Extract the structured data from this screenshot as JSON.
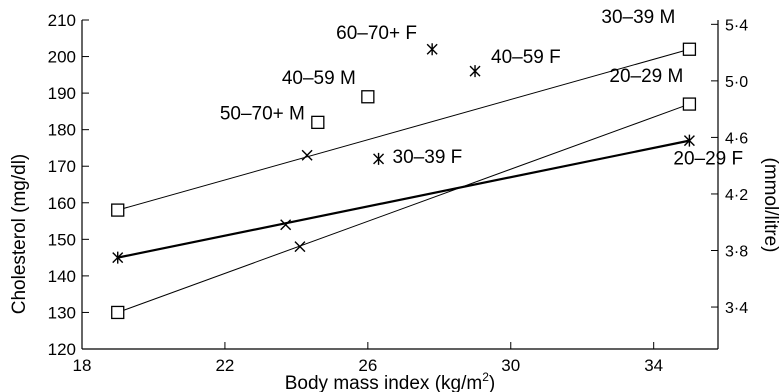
{
  "chart_data": {
    "type": "scatter",
    "xlabel": "Body mass index (kg/m",
    "xlabel_sup": "2",
    "xlabel_end": ")",
    "ylabel": "Cholesterol (mg/dl)",
    "y2label": "(mmol/litre)",
    "xlim": [
      18,
      35.8
    ],
    "ylim": [
      120,
      210
    ],
    "x_ticks": [
      18,
      22,
      26,
      30,
      34
    ],
    "y_ticks": [
      120,
      130,
      140,
      150,
      160,
      170,
      180,
      190,
      200,
      210
    ],
    "y2_ticks": [
      {
        "label": "3·4",
        "value": 3.4
      },
      {
        "label": "3·8",
        "value": 3.8
      },
      {
        "label": "4·2",
        "value": 4.2
      },
      {
        "label": "4·6",
        "value": 4.6
      },
      {
        "label": "5·0",
        "value": 5.0
      },
      {
        "label": "5·4",
        "value": 5.4
      }
    ],
    "y2_mgdl_per_unit": 38.67,
    "grid": false,
    "lines": [
      {
        "x": [
          19,
          35
        ],
        "y": [
          158,
          202
        ],
        "width": 1
      },
      {
        "x": [
          19,
          35
        ],
        "y": [
          130,
          187
        ],
        "width": 1
      },
      {
        "x": [
          19,
          35
        ],
        "y": [
          145,
          177
        ],
        "width": 2.2
      }
    ],
    "points": [
      {
        "x": 19.0,
        "y": 158,
        "marker": "square"
      },
      {
        "x": 35.0,
        "y": 202,
        "marker": "square",
        "label": "30–39 M",
        "label_dx": -88,
        "label_dy": -26
      },
      {
        "x": 19.0,
        "y": 130,
        "marker": "square"
      },
      {
        "x": 35.0,
        "y": 187,
        "marker": "square",
        "label": "20–29 M",
        "label_dx": -80,
        "label_dy": -22
      },
      {
        "x": 26.0,
        "y": 189,
        "marker": "square",
        "label": "40–59 M",
        "label_dx": -86,
        "label_dy": -13
      },
      {
        "x": 24.6,
        "y": 182,
        "marker": "square",
        "label": "50–70+ M",
        "label_dx": -98,
        "label_dy": -3
      },
      {
        "x": 24.3,
        "y": 173,
        "marker": "cross"
      },
      {
        "x": 23.7,
        "y": 154,
        "marker": "cross"
      },
      {
        "x": 24.1,
        "y": 148,
        "marker": "cross"
      },
      {
        "x": 19.0,
        "y": 145,
        "marker": "asterisk"
      },
      {
        "x": 35.0,
        "y": 177,
        "marker": "asterisk",
        "label": "20–29 F",
        "label_dx": -16,
        "label_dy": 24
      },
      {
        "x": 26.3,
        "y": 172,
        "marker": "asterisk",
        "label": "30–39 F",
        "label_dx": 14,
        "label_dy": 4
      },
      {
        "x": 29.0,
        "y": 196,
        "marker": "asterisk",
        "label": "40–59 F",
        "label_dx": 16,
        "label_dy": -8
      },
      {
        "x": 27.8,
        "y": 202,
        "marker": "asterisk",
        "label": "60–70+ F",
        "label_dx": -96,
        "label_dy": -10
      }
    ]
  }
}
